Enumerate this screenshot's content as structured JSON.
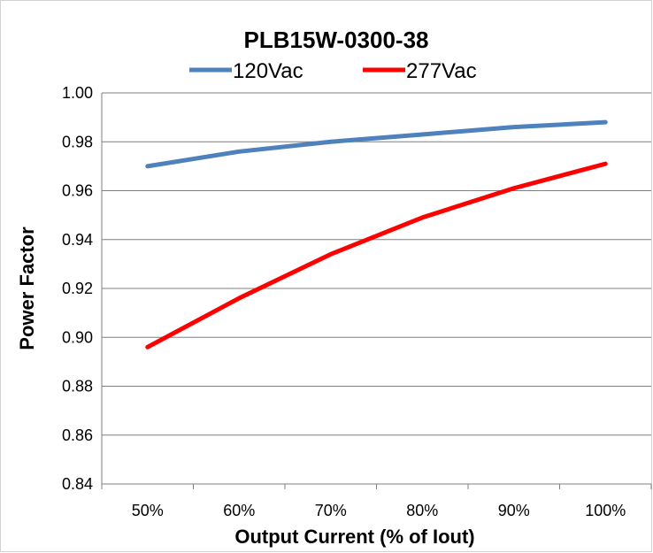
{
  "chart_data": {
    "type": "line",
    "title": "PLB15W-0300-38",
    "xlabel": "Output Current (% of Iout)",
    "ylabel": "Power Factor",
    "categories": [
      "50%",
      "60%",
      "70%",
      "80%",
      "90%",
      "100%"
    ],
    "yticks": [
      "0.84",
      "0.86",
      "0.88",
      "0.90",
      "0.92",
      "0.94",
      "0.96",
      "0.98",
      "1.00"
    ],
    "ylim": [
      0.84,
      1.0
    ],
    "grid": true,
    "legend_position": "top",
    "series": [
      {
        "name": "120Vac",
        "color": "#4F81BD",
        "values": [
          0.97,
          0.976,
          0.98,
          0.983,
          0.986,
          0.988
        ]
      },
      {
        "name": "277Vac",
        "color": "#FF0000",
        "values": [
          0.896,
          0.916,
          0.934,
          0.949,
          0.961,
          0.971
        ]
      }
    ]
  }
}
